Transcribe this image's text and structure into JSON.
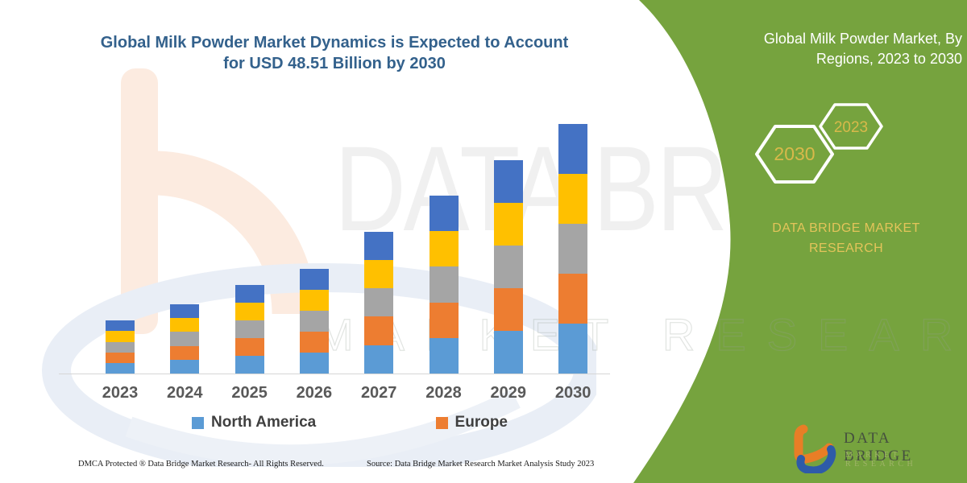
{
  "page": {
    "background": "#FFFFFF",
    "accent_green": "#76A33E",
    "gold": "#E3C45A"
  },
  "header": {
    "chart_title_line1": "Global Milk Powder Market Dynamics is Expected to Account",
    "chart_title_line2": "for USD 48.51 Billion by 2030",
    "title_color": "#33618C"
  },
  "right_panel": {
    "heading_line1": "Global Milk Powder Market, By",
    "heading_line2": "Regions, 2023 to 2030",
    "hexagons": [
      {
        "label": "2030"
      },
      {
        "label": "2023"
      }
    ],
    "brand_caption_line1": "DATA BRIDGE MARKET",
    "brand_caption_line2": "RESEARCH"
  },
  "chart_data": {
    "type": "bar",
    "stacked": true,
    "title": "Global Milk Powder Market Dynamics is Expected to Account for USD 48.51 Billion by 2030",
    "units": "USD Billion (estimated from bar heights; only the 2030 total of 48.51 is labeled)",
    "categories": [
      "2023",
      "2024",
      "2025",
      "2026",
      "2027",
      "2028",
      "2029",
      "2030"
    ],
    "totals_estimated": [
      10.3,
      13.5,
      17.2,
      20.4,
      27.6,
      34.6,
      41.5,
      48.51
    ],
    "series": [
      {
        "name": "North America",
        "color": "#5B9BD5",
        "labeled_in_legend": true,
        "values": [
          2.06,
          2.7,
          3.44,
          4.08,
          5.52,
          6.92,
          8.3,
          9.7
        ]
      },
      {
        "name": "Europe",
        "color": "#ED7D31",
        "labeled_in_legend": true,
        "values": [
          2.06,
          2.7,
          3.44,
          4.08,
          5.52,
          6.92,
          8.3,
          9.7
        ]
      },
      {
        "name": "unlabeled-gray",
        "color": "#A5A5A5",
        "labeled_in_legend": false,
        "values": [
          2.06,
          2.7,
          3.44,
          4.08,
          5.52,
          6.92,
          8.3,
          9.7
        ]
      },
      {
        "name": "unlabeled-yellow",
        "color": "#FFC000",
        "labeled_in_legend": false,
        "values": [
          2.06,
          2.7,
          3.44,
          4.08,
          5.52,
          6.92,
          8.3,
          9.7
        ]
      },
      {
        "name": "unlabeled-darkblue",
        "color": "#4472C4",
        "labeled_in_legend": false,
        "values": [
          2.06,
          2.7,
          3.44,
          4.08,
          5.52,
          6.92,
          8.3,
          9.7
        ]
      }
    ],
    "legend_position": "bottom",
    "grid": false,
    "y_axis_visible": false
  },
  "legend": {
    "items": [
      {
        "label": "North America",
        "color": "#5B9BD5"
      },
      {
        "label": "Europe",
        "color": "#ED7D31"
      }
    ]
  },
  "watermarks": {
    "big_text": "DATA BRIDGE",
    "outline_text": "MARKET RESEARCH"
  },
  "logo": {
    "brand": "DATA BRIDGE",
    "subtitle": "MARKET RESEARCH"
  },
  "footer": {
    "dmca": "DMCA Protected ® Data Bridge Market Research-  All Rights Reserved.",
    "source": "Source: Data Bridge Market Research  Market Analysis Study 2023"
  }
}
